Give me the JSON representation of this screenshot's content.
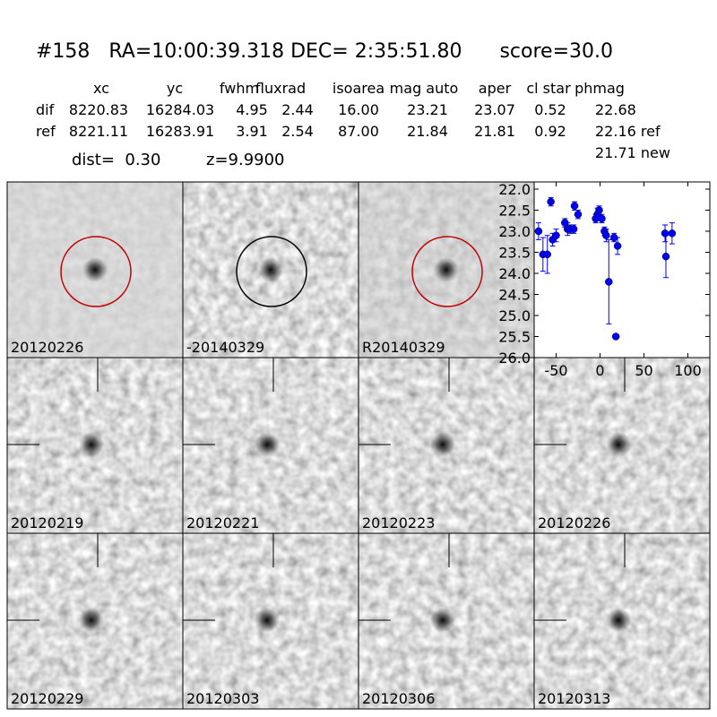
{
  "header": {
    "title": "#158   RA=10:00:39.318 DEC= 2:35:51.80      score=30.0",
    "table": {
      "columns": [
        "xc",
        "yc",
        "fwhm",
        "fluxrad",
        "isoarea",
        "mag auto",
        "aper",
        "cl star",
        "phmag"
      ],
      "rows": [
        [
          "dif",
          "8220.83",
          "16284.03",
          "4.95",
          "2.44",
          "16.00",
          "23.21",
          "23.07",
          "0.52",
          "22.68"
        ],
        [
          "ref",
          "8221.11",
          "16283.91",
          "3.91",
          "2.54",
          "87.00",
          "21.84",
          "21.81",
          "0.92",
          "22.16 ref"
        ]
      ],
      "extra": "21.71 new"
    },
    "info": [
      "dist=  0.30",
      "z=9.9900"
    ]
  },
  "tiles": [
    {
      "label": "20120226",
      "color": "#000000",
      "ring": "#c00000"
    },
    {
      "label": "-20140329",
      "color": "#000000",
      "ring": "#000000"
    },
    {
      "label": "R20140329",
      "color": "#000000",
      "ring": "#c00000"
    },
    {
      "label": "20120219",
      "color": "#000000",
      "crosshair": true
    },
    {
      "label": "20120221",
      "color": "#000000",
      "crosshair": true
    },
    {
      "label": "20120223",
      "color": "#000000",
      "crosshair": true
    },
    {
      "label": "20120226",
      "color": "#ff0000",
      "crosshair": true
    },
    {
      "label": "20120229",
      "color": "#000000",
      "crosshair": true
    },
    {
      "label": "20120303",
      "color": "#000000",
      "crosshair": true
    },
    {
      "label": "20120306",
      "color": "#000000",
      "crosshair": true
    },
    {
      "label": "20120313",
      "color": "#000000",
      "crosshair": true
    }
  ],
  "chart_data": {
    "type": "errorbar",
    "color": "#0000ff",
    "x": [
      -70,
      -65,
      -60,
      -56,
      -54,
      -50,
      -40,
      -37,
      -34,
      -30,
      -29,
      -25,
      -5,
      -3,
      -1,
      2,
      5,
      7,
      10,
      16,
      18,
      20,
      74,
      75,
      82
    ],
    "values": [
      23.0,
      23.55,
      23.55,
      22.3,
      23.2,
      23.1,
      22.8,
      22.95,
      22.95,
      22.95,
      22.4,
      22.6,
      22.7,
      22.6,
      22.5,
      22.7,
      23.0,
      23.1,
      24.2,
      23.15,
      25.5,
      23.35,
      23.05,
      23.6,
      23.05
    ],
    "errors": [
      0.2,
      0.4,
      0.45,
      0.1,
      0.15,
      0.15,
      0.1,
      0.15,
      0.1,
      0.1,
      0.1,
      0.1,
      0.1,
      0.15,
      0.1,
      0.1,
      0.1,
      0.15,
      1.0,
      0.1,
      0.05,
      0.2,
      0.2,
      0.5,
      0.25
    ],
    "xlim": [
      -75,
      125
    ],
    "xticks": [
      -50,
      0,
      50,
      100
    ],
    "ylim": [
      22,
      26
    ],
    "yinverted": true,
    "yticks": [
      {
        "value": 22,
        "label": "22.0"
      },
      {
        "value": 22.5,
        "label": "22.5"
      },
      {
        "value": 23,
        "label": "23.0"
      },
      {
        "value": 23.5,
        "label": "23.5"
      },
      {
        "value": 24,
        "label": "24.0"
      },
      {
        "value": 24.5,
        "label": "24.5"
      },
      {
        "value": 25,
        "label": "25.0"
      },
      {
        "value": 25.5,
        "label": "25.5"
      },
      {
        "value": 26,
        "label": "26.0"
      }
    ]
  }
}
